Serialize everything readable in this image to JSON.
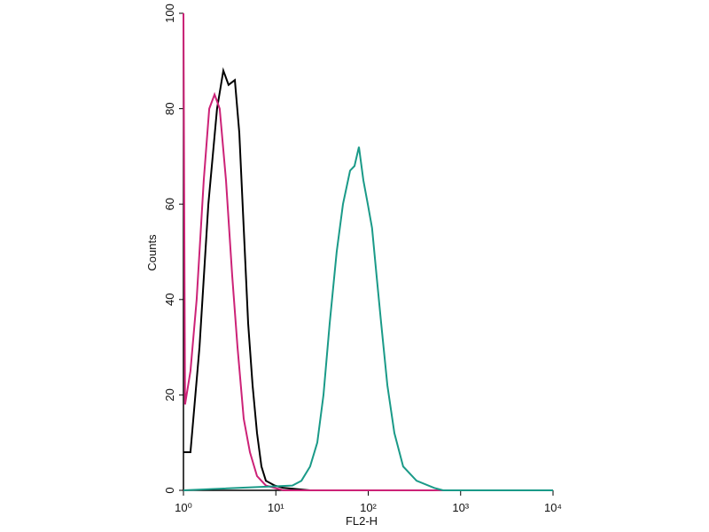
{
  "chart_data": {
    "type": "line",
    "xlabel": "FL2-H",
    "ylabel": "Counts",
    "xscale": "log",
    "xlim": [
      1,
      10000
    ],
    "ylim": [
      0,
      100
    ],
    "xticks": [
      {
        "value": 1,
        "label": "10⁰"
      },
      {
        "value": 10,
        "label": "10¹"
      },
      {
        "value": 100,
        "label": "10²"
      },
      {
        "value": 1000,
        "label": "10³"
      },
      {
        "value": 10000,
        "label": "10⁴"
      }
    ],
    "yticks": [
      0,
      20,
      40,
      60,
      80,
      100
    ],
    "series": [
      {
        "color": "#000000",
        "x": [
          1,
          1.19,
          1.49,
          1.86,
          2.31,
          2.7,
          3.08,
          3.6,
          4.02,
          4.49,
          5.01,
          5.6,
          6.25,
          6.98,
          7.8,
          9.73,
          12.1,
          23.5,
          10000
        ],
        "values": [
          8,
          8,
          30,
          60,
          80,
          88,
          85,
          86,
          75,
          55,
          35,
          22,
          12,
          5,
          2,
          1,
          0.5,
          0,
          0
        ]
      },
      {
        "color": "#cc2277",
        "x": [
          1,
          1.04,
          1.19,
          1.39,
          1.66,
          1.9,
          2.17,
          2.47,
          2.89,
          3.37,
          3.85,
          4.49,
          5.24,
          6.25,
          7.8,
          12.1,
          10000
        ],
        "values": [
          100,
          18,
          25,
          40,
          65,
          80,
          83,
          80,
          65,
          45,
          30,
          15,
          8,
          3,
          1,
          0,
          0
        ]
      },
      {
        "color": "#1a9a88",
        "x": [
          1,
          15.1,
          18.9,
          23.5,
          28.1,
          32.8,
          38.3,
          45.6,
          53.3,
          63.6,
          71,
          79.3,
          88.5,
          98.9,
          110,
          123,
          138,
          161,
          192,
          239,
          333,
          518,
          646,
          10000
        ],
        "values": [
          0,
          1,
          2,
          5,
          10,
          20,
          35,
          50,
          60,
          67,
          68,
          72,
          65,
          60,
          55,
          45,
          35,
          22,
          12,
          5,
          2,
          0.5,
          0,
          0
        ]
      }
    ]
  }
}
